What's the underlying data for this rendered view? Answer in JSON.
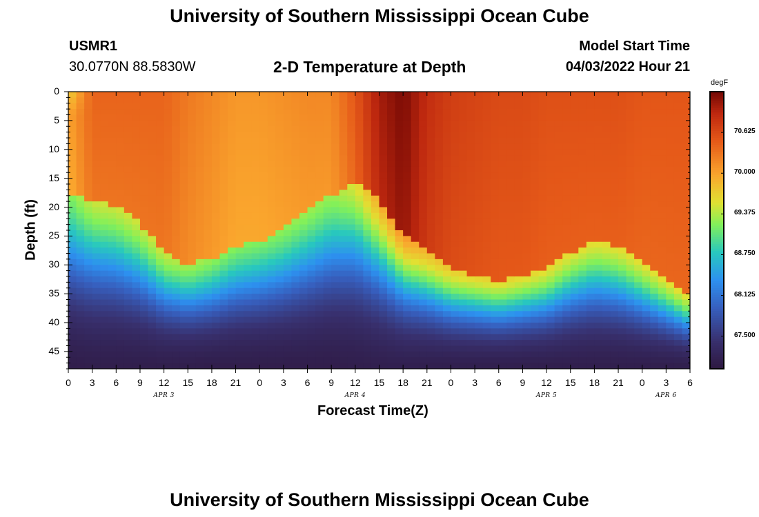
{
  "header": {
    "title": "University of Southern Mississippi Ocean Cube",
    "station": "USMR1",
    "coords": "30.0770N  88.5830W",
    "subtitle": "2-D Temperature at Depth",
    "model_label": "Model Start Time",
    "model_time": "04/03/2022 Hour 21"
  },
  "footer": {
    "title": "University of Southern Mississippi Ocean Cube"
  },
  "chart_data": {
    "type": "heatmap",
    "title": "2-D Temperature at Depth",
    "xlabel": "Forecast Time(Z)",
    "ylabel": "Depth (ft)",
    "x_tick_labels": [
      "0",
      "3",
      "6",
      "9",
      "12",
      "15",
      "18",
      "21",
      "0",
      "3",
      "6",
      "9",
      "12",
      "15",
      "18",
      "21",
      "0",
      "3",
      "6",
      "9",
      "12",
      "15",
      "18",
      "21",
      "0",
      "3",
      "6"
    ],
    "day_labels": [
      {
        "label": "APR 3",
        "tick_index": 4
      },
      {
        "label": "APR 4",
        "tick_index": 12
      },
      {
        "label": "APR 5",
        "tick_index": 20
      },
      {
        "label": "APR 6",
        "tick_index": 25
      }
    ],
    "x_range_hours": [
      0,
      78
    ],
    "y_tick_labels": [
      "0",
      "5",
      "10",
      "15",
      "20",
      "25",
      "30",
      "35",
      "40",
      "45"
    ],
    "y_ticks": [
      0,
      5,
      10,
      15,
      20,
      25,
      30,
      35,
      40,
      45
    ],
    "y_range_ft": [
      0,
      48
    ],
    "colorbar": {
      "unit": "degF",
      "tick_labels": [
        "70.625",
        "70.000",
        "69.375",
        "68.750",
        "68.125",
        "67.500"
      ],
      "tick_values": [
        70.625,
        70.0,
        69.375,
        68.75,
        68.125,
        67.5
      ],
      "range": [
        67.0,
        71.25
      ]
    },
    "thermocline_depth_ft": [
      [
        0,
        18
      ],
      [
        3,
        19
      ],
      [
        6,
        20
      ],
      [
        9,
        23
      ],
      [
        12,
        28
      ],
      [
        15,
        30
      ],
      [
        18,
        29
      ],
      [
        21,
        27
      ],
      [
        24,
        26
      ],
      [
        27,
        24
      ],
      [
        30,
        21
      ],
      [
        33,
        18
      ],
      [
        36,
        16
      ],
      [
        39,
        19
      ],
      [
        42,
        25
      ],
      [
        45,
        28
      ],
      [
        48,
        31
      ],
      [
        51,
        32
      ],
      [
        54,
        33
      ],
      [
        57,
        32
      ],
      [
        60,
        31
      ],
      [
        63,
        28
      ],
      [
        66,
        26
      ],
      [
        69,
        27
      ],
      [
        72,
        30
      ],
      [
        75,
        33
      ],
      [
        78,
        36
      ]
    ],
    "warm_layer_temp_degF": [
      [
        0,
        69.9
      ],
      [
        3,
        70.3
      ],
      [
        6,
        70.3
      ],
      [
        9,
        70.3
      ],
      [
        12,
        70.3
      ],
      [
        15,
        70.15
      ],
      [
        18,
        70.05
      ],
      [
        21,
        69.95
      ],
      [
        24,
        69.95
      ],
      [
        27,
        70.0
      ],
      [
        30,
        70.05
      ],
      [
        33,
        70.05
      ],
      [
        36,
        70.4
      ],
      [
        39,
        70.9
      ],
      [
        42,
        71.1
      ],
      [
        45,
        70.75
      ],
      [
        48,
        70.6
      ],
      [
        51,
        70.55
      ],
      [
        54,
        70.5
      ],
      [
        57,
        70.5
      ],
      [
        60,
        70.45
      ],
      [
        63,
        70.45
      ],
      [
        66,
        70.45
      ],
      [
        69,
        70.45
      ],
      [
        72,
        70.4
      ],
      [
        75,
        70.4
      ],
      [
        78,
        70.4
      ]
    ]
  }
}
